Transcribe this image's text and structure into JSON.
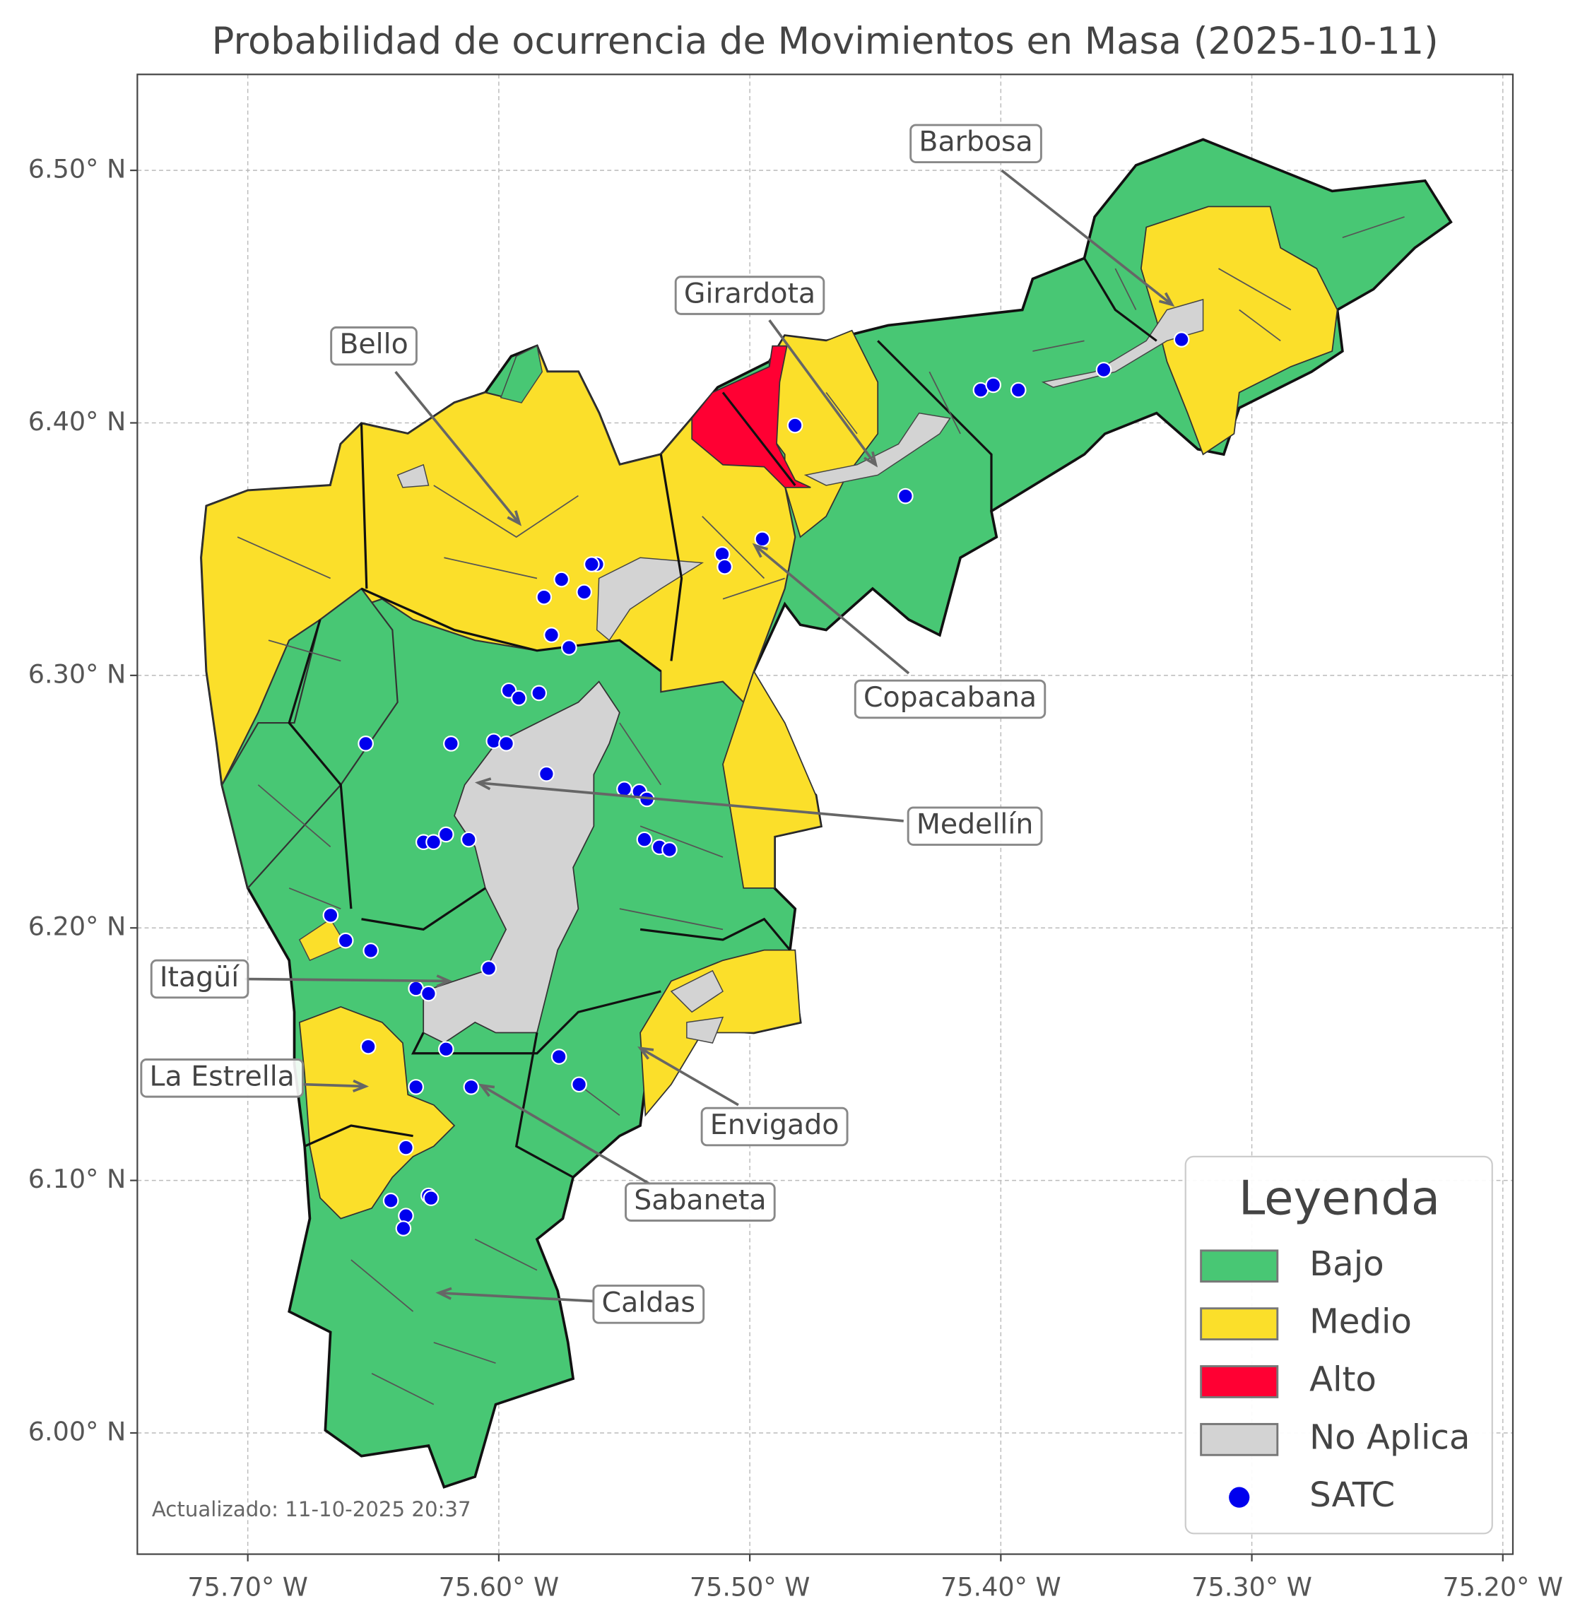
{
  "chart_data": {
    "type": "map",
    "title": "Probabilidad de ocurrencia de Movimientos en Masa (2025-10-11)",
    "xlim": [
      -75.744,
      -75.196
    ],
    "ylim": [
      5.952,
      6.538
    ],
    "xticks": [
      {
        "value": -75.7,
        "label": "75.70° W"
      },
      {
        "value": -75.6,
        "label": "75.60° W"
      },
      {
        "value": -75.5,
        "label": "75.50° W"
      },
      {
        "value": -75.4,
        "label": "75.40° W"
      },
      {
        "value": -75.3,
        "label": "75.30° W"
      },
      {
        "value": -75.2,
        "label": "75.20° W"
      }
    ],
    "yticks": [
      {
        "value": 6.0,
        "label": "6.00° N"
      },
      {
        "value": 6.1,
        "label": "6.10° N"
      },
      {
        "value": 6.2,
        "label": "6.20° N"
      },
      {
        "value": 6.3,
        "label": "6.30° N"
      },
      {
        "value": 6.4,
        "label": "6.40° N"
      },
      {
        "value": 6.5,
        "label": "6.50° N"
      }
    ],
    "grid": true,
    "legend": {
      "title": "Leyenda",
      "corner": "lower right",
      "items": [
        {
          "name": "Bajo",
          "color": "#48c774"
        },
        {
          "name": "Medio",
          "color": "#fbdf2a"
        },
        {
          "name": "Alto",
          "color": "#ff0033"
        },
        {
          "name": "No Aplica",
          "color": "#d3d3d3"
        }
      ]
    },
    "series": [
      {
        "name": "SATC",
        "color": "#0000ee",
        "x": [
          -75.328,
          -75.359,
          -75.408,
          -75.403,
          -75.393,
          -75.482,
          -75.438,
          -75.495,
          -75.511,
          -75.51,
          -75.561,
          -75.563,
          -75.575,
          -75.582,
          -75.566,
          -75.579,
          -75.572,
          -75.596,
          -75.592,
          -75.584,
          -75.653,
          -75.619,
          -75.602,
          -75.597,
          -75.581,
          -75.55,
          -75.544,
          -75.541,
          -75.542,
          -75.536,
          -75.532,
          -75.63,
          -75.626,
          -75.621,
          -75.612,
          -75.667,
          -75.661,
          -75.651,
          -75.604,
          -75.633,
          -75.628,
          -75.652,
          -75.621,
          -75.576,
          -75.568,
          -75.633,
          -75.611,
          -75.637,
          -75.643,
          -75.628,
          -75.627,
          -75.637,
          -75.638
        ],
        "values": [
          6.433,
          6.421,
          6.413,
          6.415,
          6.413,
          6.399,
          6.371,
          6.354,
          6.348,
          6.343,
          6.344,
          6.344,
          6.338,
          6.331,
          6.333,
          6.316,
          6.311,
          6.294,
          6.291,
          6.293,
          6.273,
          6.273,
          6.274,
          6.273,
          6.261,
          6.255,
          6.254,
          6.251,
          6.235,
          6.232,
          6.231,
          6.234,
          6.234,
          6.237,
          6.235,
          6.205,
          6.195,
          6.191,
          6.184,
          6.176,
          6.174,
          6.153,
          6.152,
          6.149,
          6.138,
          6.137,
          6.137,
          6.113,
          6.092,
          6.094,
          6.093,
          6.086,
          6.081
        ]
      }
    ],
    "annotations": [
      "Barbosa",
      "Girardota",
      "Bello",
      "Copacabana",
      "Medellín",
      "Itagüí",
      "La Estrella",
      "Envigado",
      "Sabaneta",
      "Caldas"
    ],
    "footnote": "Actualizado: 11-10-2025 20:37"
  }
}
